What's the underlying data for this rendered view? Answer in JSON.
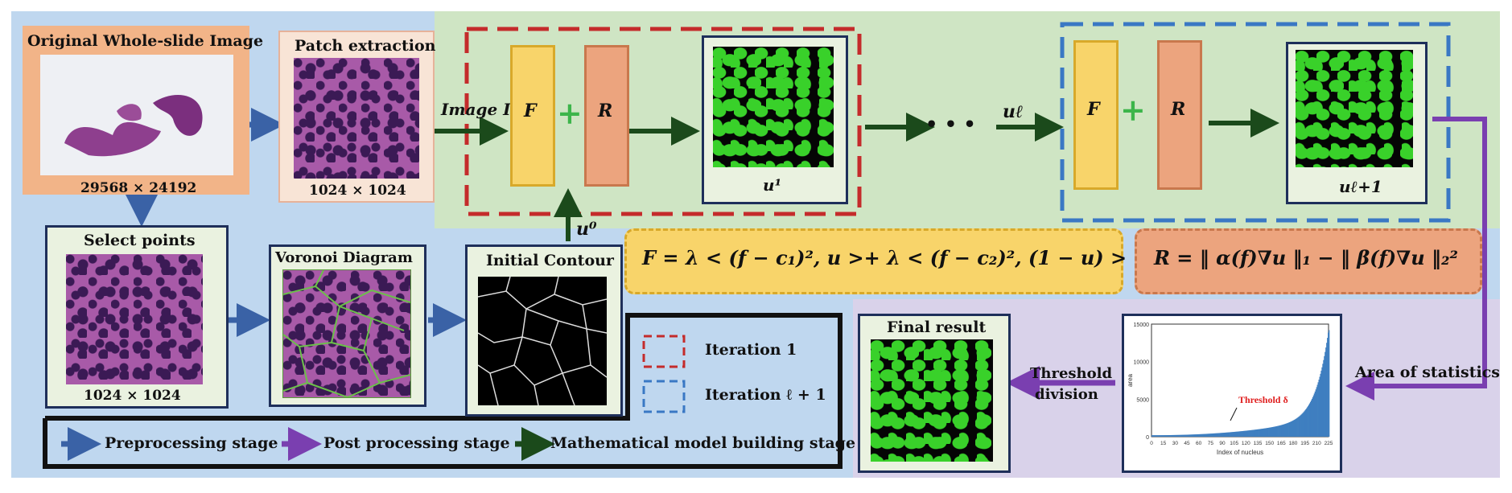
{
  "titles": {
    "original": "Original Whole-slide Image",
    "patch": "Patch extraction",
    "select": "Select points",
    "voronoi": "Voronoi Diagram",
    "initial": "Initial Contour",
    "final": "Final result"
  },
  "sizes": {
    "wsi": "29568 × 24192",
    "patch": "1024 × 1024",
    "select": "1024 × 1024"
  },
  "symbols": {
    "image_i": "Image I",
    "F": "F",
    "R": "R",
    "plus": "+",
    "u1": "u¹",
    "u0": "u⁰",
    "dots": "• • •",
    "ul": "uℓ",
    "ul1": "uℓ+1"
  },
  "formulas": {
    "F": "F = λ < (f − c₁)², u >+ λ < (f − c₂)², (1 − u) >",
    "R": "R = ‖ α(f)∇u ‖₁ − ‖ β(f)∇u ‖₂²"
  },
  "labels": {
    "area_stats": "Area of statistics",
    "threshold_line1": "Threshold",
    "threshold_line2": "division"
  },
  "iterations": {
    "iter1": "Iteration 1",
    "iter2": "Iteration ℓ + 1"
  },
  "legend": {
    "pre": "Preprocessing stage",
    "post": "Post processing stage",
    "math": "Mathematical model building stage"
  },
  "colors": {
    "blue_bg": "#bfd7ef",
    "green_bg": "#cfe5c4",
    "purple_bg": "#d9d2ea",
    "blue_arrow": "#3a62a6",
    "purple_arrow": "#7a3fb0",
    "green_arrow": "#1b4a1b",
    "iter1_dash": "#c42b2b",
    "iter2_dash": "#3a78c4"
  },
  "chart_data": {
    "type": "bar",
    "ylabel": "area",
    "xlabel": "Index of nucleus",
    "ylim": [
      0,
      15000
    ],
    "yticks": [
      "15000",
      "10000",
      "5000",
      "0"
    ],
    "xticks": [
      "0",
      "15",
      "30",
      "45",
      "60",
      "75",
      "90",
      "105",
      "120",
      "135",
      "150",
      "165",
      "180",
      "195",
      "210",
      "225"
    ],
    "annotation": "Threshold δ"
  }
}
